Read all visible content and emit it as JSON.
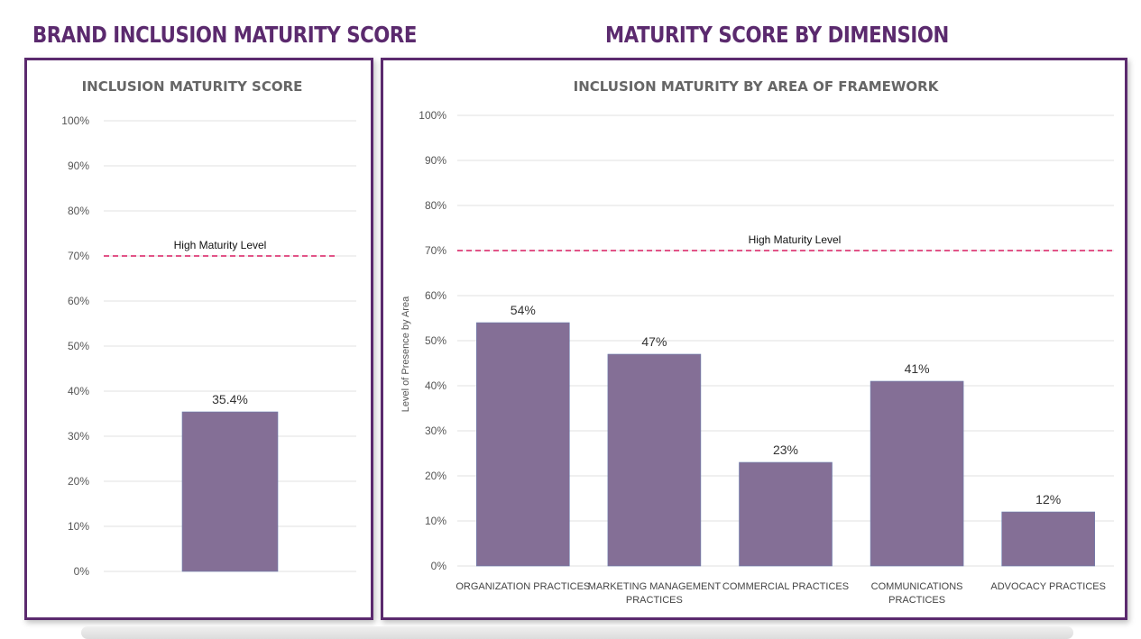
{
  "headings": {
    "left": "BRAND INCLUSION MATURITY SCORE",
    "right": "MATURITY SCORE BY DIMENSION"
  },
  "colors": {
    "heading": "#5b2a6e",
    "bar": "#846f96",
    "reference_line": "#d81b60",
    "grid": "#e2e2e2"
  },
  "chart_data": [
    {
      "type": "bar",
      "title": "INCLUSION MATURITY SCORE",
      "xlabel": "",
      "ylabel": "",
      "categories": [
        ""
      ],
      "values": [
        35.4
      ],
      "value_labels": [
        "35.4%"
      ],
      "ylim": [
        0,
        100
      ],
      "yticks": [
        "0%",
        "10%",
        "20%",
        "30%",
        "40%",
        "50%",
        "60%",
        "70%",
        "80%",
        "90%",
        "100%"
      ],
      "reference_line": {
        "value": 70,
        "label": "High Maturity Level",
        "style": "dashed"
      },
      "grid": true
    },
    {
      "type": "bar",
      "title": "INCLUSION MATURITY BY AREA OF FRAMEWORK",
      "xlabel": "",
      "ylabel": "Level of Presence by Area",
      "categories": [
        [
          "ORGANIZATION PRACTICES"
        ],
        [
          "MARKETING MANAGEMENT",
          "PRACTICES"
        ],
        [
          "COMMERCIAL PRACTICES"
        ],
        [
          "COMMUNICATIONS",
          "PRACTICES"
        ],
        [
          "ADVOCACY PRACTICES"
        ]
      ],
      "values": [
        54,
        47,
        23,
        41,
        12
      ],
      "value_labels": [
        "54%",
        "47%",
        "23%",
        "41%",
        "12%"
      ],
      "ylim": [
        0,
        100
      ],
      "yticks": [
        "0%",
        "10%",
        "20%",
        "30%",
        "40%",
        "50%",
        "60%",
        "70%",
        "80%",
        "90%",
        "100%"
      ],
      "reference_line": {
        "value": 70,
        "label": "High Maturity Level",
        "style": "dashed"
      },
      "grid": true
    }
  ]
}
